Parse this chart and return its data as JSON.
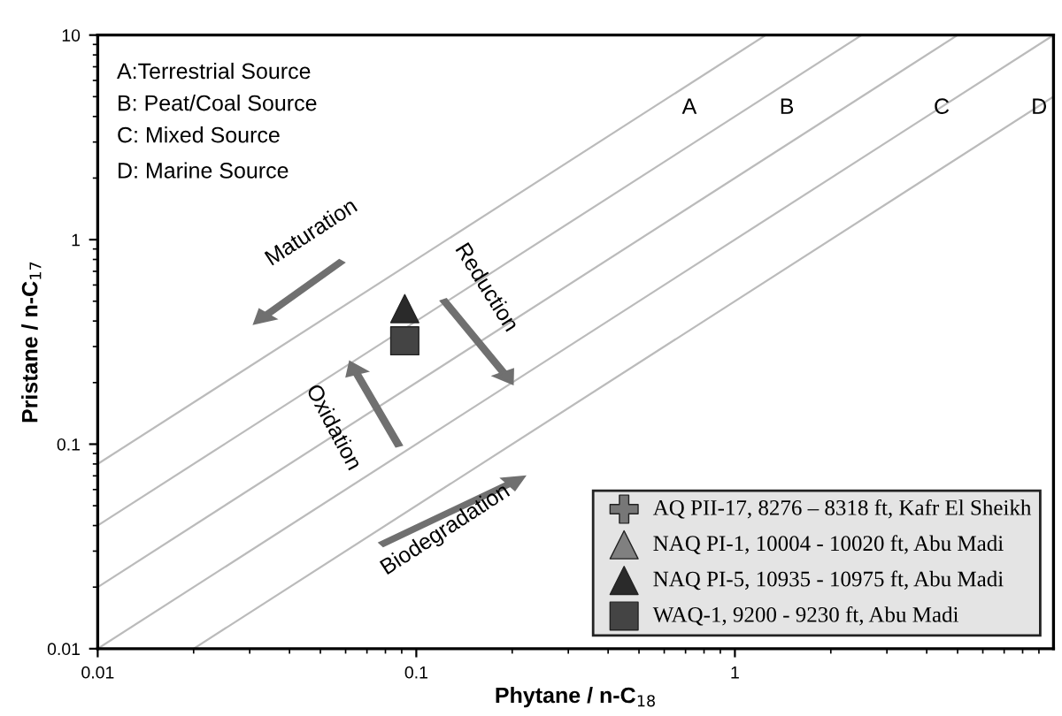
{
  "chart_data": {
    "type": "scatter",
    "xlabel": "Phytane / n-C$_{18}$",
    "ylabel": "Pristane / n-C$_{17}$",
    "log": "xy",
    "xlim": [
      0.01,
      10
    ],
    "ylim": [
      0.01,
      10
    ],
    "xticks": [
      0.01,
      0.1,
      1
    ],
    "yticks": [
      0.01,
      0.1,
      1,
      10
    ],
    "grid": false,
    "legend": "bottom right",
    "annotations": [
      "A:Terrestrial Source",
      "B: Peat/Coal Source",
      "C: Mixed Source",
      "D: Marine Source",
      "Maturation",
      "Oxidation",
      "Reduction",
      "Biodegradation",
      "A",
      "B",
      "C",
      "D"
    ],
    "series": [
      {
        "type": "line",
        "color": "#bbbbbb",
        "x": [
          0.01,
          1.25
        ],
        "values": [
          0.08,
          10
        ]
      },
      {
        "type": "line",
        "color": "#bbbbbb",
        "x": [
          0.01,
          2.5
        ],
        "values": [
          0.04,
          10
        ]
      },
      {
        "type": "line",
        "color": "#bbbbbb",
        "x": [
          0.01,
          5
        ],
        "values": [
          0.02,
          10
        ]
      },
      {
        "type": "line",
        "color": "#bbbbbb",
        "x": [
          0.01,
          10
        ],
        "values": [
          0.01,
          10
        ]
      },
      {
        "type": "line",
        "color": "#bbbbbb",
        "x": [
          0.02,
          10
        ],
        "values": [
          0.01,
          5
        ]
      },
      {
        "name": "AQ PII-17, 8276 – 8318 ft, Kafr El Sheikh",
        "color": "#777777",
        "marker": "cross",
        "x": [
          null
        ],
        "values": [
          null
        ]
      },
      {
        "name": "NAQ PI-1, 10004 - 10020 ft, Abu Madi",
        "color": "#808080",
        "marker": "triangle",
        "x": [
          null
        ],
        "values": [
          null
        ]
      },
      {
        "name": "NAQ PI-5, 10935 - 10975 ft, Abu Madi",
        "color": "#2a2a2a",
        "marker": "triangle",
        "x": [
          0.092
        ],
        "values": [
          0.46
        ]
      },
      {
        "name": "WAQ-1, 9200 - 9230 ft, Abu Madi",
        "color": "#444444",
        "marker": "square",
        "x": [
          0.092
        ],
        "values": [
          0.32
        ]
      }
    ]
  }
}
